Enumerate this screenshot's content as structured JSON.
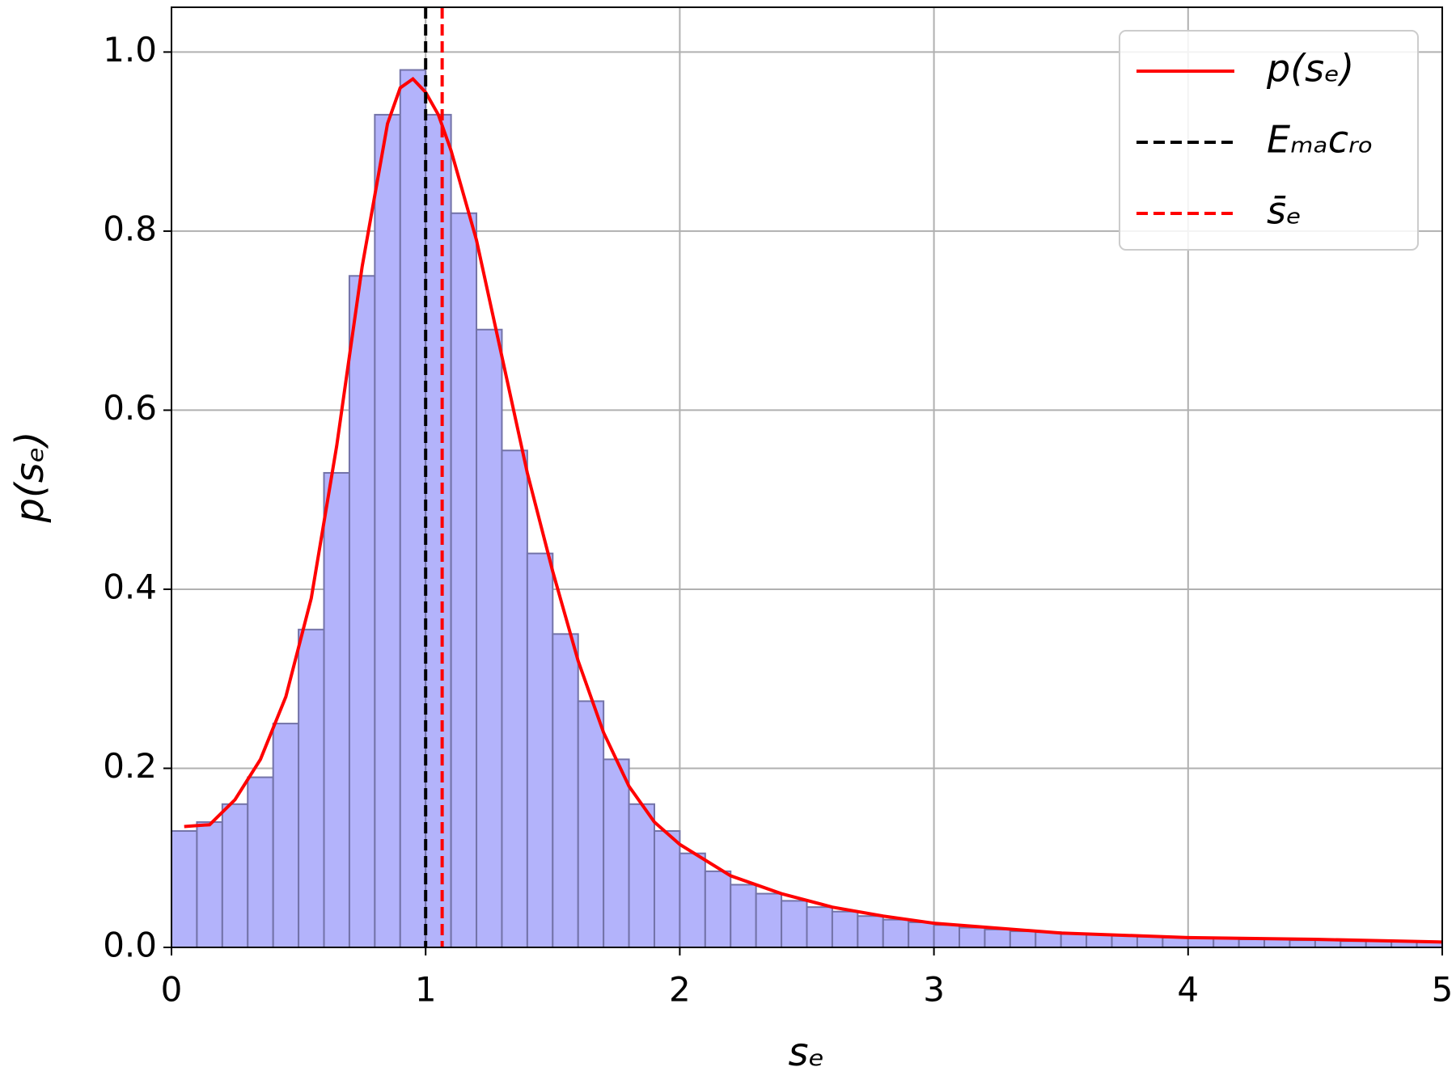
{
  "chart_data": {
    "type": "histogram",
    "xlabel": "sₑ",
    "ylabel": "p(sₑ)",
    "bins": [
      0,
      0.1,
      0.2,
      0.3,
      0.4,
      0.5,
      0.6,
      0.7,
      0.8,
      0.9,
      1.0,
      1.1,
      1.2,
      1.3,
      1.4,
      1.5,
      1.6,
      1.7,
      1.8,
      1.9,
      2.0,
      2.1,
      2.2,
      2.3,
      2.4,
      2.5,
      2.6,
      2.7,
      2.8,
      2.9,
      3.0,
      3.1,
      3.2,
      3.3,
      3.4,
      3.5,
      3.6,
      3.7,
      3.8,
      3.9,
      4.0,
      4.1,
      4.2,
      4.3,
      4.4,
      4.5,
      4.6,
      4.7,
      4.8,
      4.9,
      5.0
    ],
    "values": [
      0.13,
      0.14,
      0.16,
      0.19,
      0.25,
      0.355,
      0.53,
      0.75,
      0.93,
      0.98,
      0.93,
      0.82,
      0.69,
      0.555,
      0.44,
      0.35,
      0.275,
      0.21,
      0.16,
      0.13,
      0.105,
      0.085,
      0.07,
      0.06,
      0.052,
      0.045,
      0.04,
      0.035,
      0.031,
      0.028,
      0.025,
      0.022,
      0.02,
      0.018,
      0.017,
      0.015,
      0.014,
      0.013,
      0.012,
      0.011,
      0.011,
      0.01,
      0.009,
      0.009,
      0.008,
      0.008,
      0.007,
      0.007,
      0.007,
      0.006
    ],
    "color": "#b3b3fb",
    "edgecolor": "#7373a8",
    "curve": {
      "name": "p(sₑ)",
      "color": "#ff0000",
      "x": [
        0.05,
        0.15,
        0.25,
        0.35,
        0.45,
        0.55,
        0.65,
        0.75,
        0.85,
        0.9,
        0.95,
        1.0,
        1.05,
        1.1,
        1.2,
        1.3,
        1.4,
        1.5,
        1.6,
        1.7,
        1.8,
        1.9,
        2.0,
        2.2,
        2.4,
        2.6,
        2.8,
        3.0,
        3.5,
        4.0,
        4.5,
        5.0
      ],
      "values": [
        0.135,
        0.137,
        0.165,
        0.21,
        0.28,
        0.39,
        0.56,
        0.76,
        0.92,
        0.96,
        0.97,
        0.955,
        0.93,
        0.89,
        0.79,
        0.66,
        0.53,
        0.42,
        0.32,
        0.24,
        0.18,
        0.14,
        0.115,
        0.08,
        0.06,
        0.045,
        0.035,
        0.027,
        0.016,
        0.011,
        0.009,
        0.006
      ]
    },
    "vlines": [
      {
        "name": "Eₘₐcᵣₒ",
        "color": "#000000",
        "x": 1.0
      },
      {
        "name": "s̄ₑ",
        "color": "#ff0000",
        "x": 1.065
      }
    ],
    "xlim": [
      0,
      5
    ],
    "ylim": [
      0,
      1.05
    ],
    "xticks": [
      0,
      1,
      2,
      3,
      4,
      5
    ],
    "yticks": [
      {
        "value": 0,
        "label": "0.0"
      },
      0.2,
      0.4,
      0.6,
      0.8,
      {
        "value": 1,
        "label": "1.0"
      }
    ],
    "grid": true,
    "legend": "upper right"
  }
}
